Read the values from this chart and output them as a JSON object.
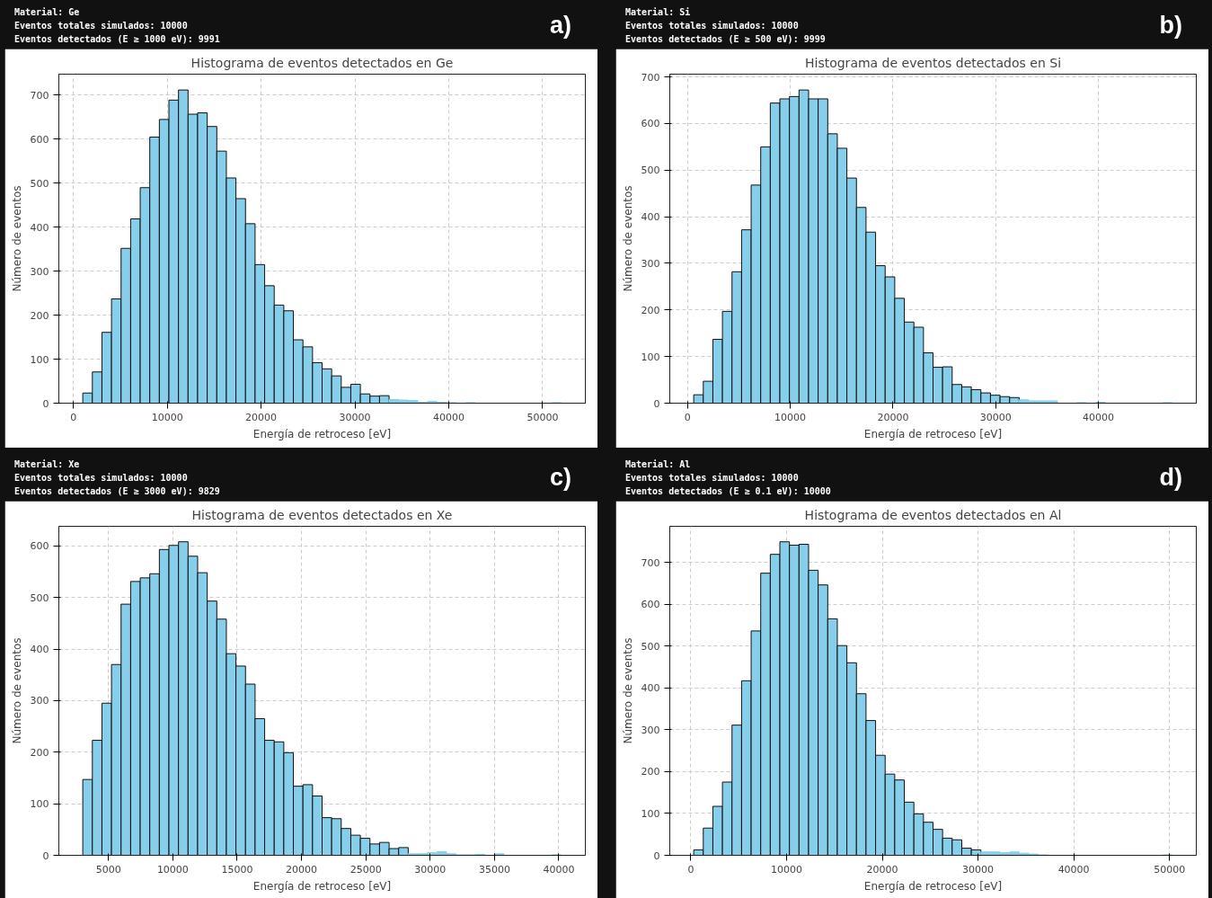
{
  "chart_data": [
    {
      "type": "histogram",
      "title": "Histograma de eventos detectados en Ge",
      "xlabel": "Energía de retroceso [eV]",
      "ylabel": "Número de eventos",
      "color": "#87ceeb",
      "annotations": [
        "a)",
        "Material: Ge",
        "Eventos totales simulados: 10000",
        "Eventos detectados (E ≥ 1000 eV): 9991"
      ],
      "bins": [
        1000,
        2020,
        3040,
        4060,
        5080,
        6100,
        7120,
        8140,
        9160,
        10180,
        11200,
        12220,
        13240,
        14260,
        15280,
        16300,
        17320,
        18340,
        19360,
        20380,
        21400,
        22420,
        23440,
        24460,
        25480,
        26500,
        27520,
        28540,
        29560,
        30580,
        31600,
        32620,
        33640,
        34660,
        35680,
        36700,
        37720,
        38740,
        39760,
        40780,
        41800,
        42820,
        43840,
        44860,
        45880,
        46900,
        47920,
        48940,
        49960,
        50980,
        52000
      ],
      "values": [
        23,
        71,
        161,
        237,
        352,
        419,
        490,
        605,
        645,
        689,
        712,
        657,
        660,
        629,
        573,
        512,
        465,
        408,
        315,
        267,
        223,
        210,
        144,
        128,
        92,
        78,
        62,
        36,
        43,
        21,
        16,
        17,
        8,
        7,
        6,
        2,
        4,
        2,
        1,
        0,
        1,
        0,
        0,
        0,
        0,
        0,
        0,
        0,
        0,
        1
      ],
      "xlim": [
        -1550,
        54550
      ],
      "ylim": [
        0,
        748
      ],
      "xticks": [
        0,
        10000,
        20000,
        30000,
        40000,
        50000
      ],
      "yticks": [
        0,
        100,
        200,
        300,
        400,
        500,
        600,
        700
      ],
      "grid": true
    },
    {
      "type": "histogram",
      "title": "Histograma de eventos detectados en Si",
      "xlabel": "Energía de retroceso [eV]",
      "ylabel": "Número de eventos",
      "color": "#87ceeb",
      "annotations": [
        "b)",
        "Material: Si",
        "Eventos totales simulados: 10000",
        "Eventos detectados (E ≥ 500 eV): 9999"
      ],
      "bins": [
        600,
        1532,
        2464,
        3396,
        4328,
        5260,
        6192,
        7124,
        8056,
        8988,
        9920,
        10852,
        11784,
        12716,
        13648,
        14580,
        15512,
        16444,
        17376,
        18308,
        19240,
        20172,
        21104,
        22036,
        22968,
        23900,
        24832,
        25764,
        26696,
        27628,
        28560,
        29492,
        30424,
        31356,
        32288,
        33220,
        34152,
        35084,
        36016,
        36948,
        37880,
        38812,
        39744,
        40676,
        41608,
        42540,
        43472,
        44404,
        45336,
        46268,
        47200
      ],
      "values": [
        18,
        47,
        137,
        197,
        282,
        372,
        468,
        550,
        644,
        653,
        658,
        672,
        653,
        653,
        578,
        547,
        483,
        420,
        367,
        295,
        271,
        225,
        174,
        163,
        108,
        77,
        78,
        40,
        35,
        29,
        22,
        17,
        14,
        12,
        7,
        5,
        5,
        5,
        0,
        0,
        1,
        0,
        2,
        0,
        0,
        0,
        0,
        0,
        0,
        1
      ],
      "xlim": [
        -1730,
        49530
      ],
      "ylim": [
        0,
        706
      ],
      "xticks": [
        0,
        10000,
        20000,
        30000,
        40000
      ],
      "yticks": [
        0,
        100,
        200,
        300,
        400,
        500,
        600,
        700
      ],
      "grid": true
    },
    {
      "type": "histogram",
      "title": "Histograma de eventos detectados en Xe",
      "xlabel": "Energía de retroceso [eV]",
      "ylabel": "Número de eventos",
      "color": "#87ceeb",
      "annotations": [
        "c)",
        "Material: Xe",
        "Eventos totales simulados: 10000",
        "Eventos detectados (E ≥ 3000 eV): 9829"
      ],
      "bins": [
        3000,
        3744,
        4488,
        5232,
        5976,
        6720,
        7464,
        8208,
        8952,
        9696,
        10440,
        11184,
        11928,
        12672,
        13416,
        14160,
        14904,
        15648,
        16392,
        17136,
        17880,
        18624,
        19368,
        20112,
        20856,
        21600,
        22344,
        23088,
        23832,
        24576,
        25320,
        26064,
        26808,
        27552,
        28296,
        29040,
        29784,
        30528,
        31272,
        32016,
        32760,
        33504,
        34248,
        34992,
        35736,
        36480,
        37224,
        37968,
        38712,
        39456,
        40200
      ],
      "values": [
        147,
        223,
        295,
        370,
        487,
        531,
        538,
        546,
        593,
        601,
        608,
        580,
        548,
        493,
        458,
        391,
        367,
        332,
        265,
        223,
        220,
        199,
        134,
        137,
        115,
        73,
        71,
        52,
        39,
        33,
        22,
        25,
        13,
        15,
        3,
        3,
        5,
        7,
        3,
        1,
        1,
        2,
        0,
        3,
        0,
        0,
        0,
        0,
        0,
        1
      ],
      "xlim": [
        1140,
        42060
      ],
      "ylim": [
        0,
        638
      ],
      "xticks": [
        5000,
        10000,
        15000,
        20000,
        25000,
        30000,
        35000,
        40000
      ],
      "yticks": [
        0,
        100,
        200,
        300,
        400,
        500,
        600
      ],
      "grid": true
    },
    {
      "type": "histogram",
      "title": "Histograma de eventos detectados en Al",
      "xlabel": "Energía de retroceso [eV]",
      "ylabel": "Número de eventos",
      "color": "#87ceeb",
      "annotations": [
        "d)",
        "Material: Al",
        "Eventos totales simulados: 10000",
        "Eventos detectados (E ≥ 0.1 eV): 10000"
      ],
      "bins": [
        300,
        1300,
        2300,
        3300,
        4300,
        5300,
        6300,
        7300,
        8300,
        9300,
        10300,
        11300,
        12300,
        13300,
        14300,
        15300,
        16300,
        17300,
        18300,
        19300,
        20300,
        21300,
        22300,
        23300,
        24300,
        25300,
        26300,
        27300,
        28300,
        29300,
        30300,
        31300,
        32300,
        33300,
        34300,
        35300,
        36300,
        37300,
        38300,
        39300,
        40300,
        41300,
        42300,
        43300,
        44300,
        45300,
        46300,
        47300,
        48300,
        49300,
        50300
      ],
      "values": [
        13,
        65,
        117,
        175,
        311,
        417,
        536,
        674,
        719,
        749,
        741,
        743,
        681,
        646,
        565,
        501,
        460,
        386,
        322,
        239,
        194,
        180,
        127,
        99,
        79,
        62,
        41,
        37,
        17,
        13,
        8,
        8,
        6,
        8,
        5,
        3,
        1,
        0,
        0,
        0,
        0,
        0,
        0,
        0,
        0,
        0,
        0,
        0,
        0,
        1
      ],
      "xlim": [
        -2200,
        52800
      ],
      "ylim": [
        0,
        786
      ],
      "xticks": [
        0,
        10000,
        20000,
        30000,
        40000,
        50000
      ],
      "yticks": [
        0,
        100,
        200,
        300,
        400,
        500,
        600,
        700
      ],
      "grid": true
    }
  ]
}
